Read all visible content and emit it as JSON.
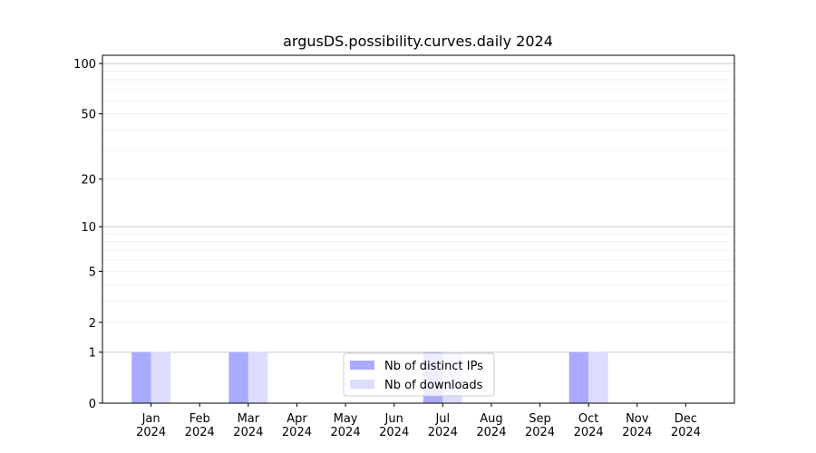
{
  "chart_data": {
    "type": "bar",
    "title": "argusDS.possibility.curves.daily 2024",
    "categories": [
      "Jan 2024",
      "Feb 2024",
      "Mar 2024",
      "Apr 2024",
      "May 2024",
      "Jun 2024",
      "Jul 2024",
      "Aug 2024",
      "Sep 2024",
      "Oct 2024",
      "Nov 2024",
      "Dec 2024"
    ],
    "series": [
      {
        "name": "Nb of distinct IPs",
        "color": "#aaaaff",
        "values": [
          1,
          0,
          1,
          0,
          0,
          0,
          1,
          0,
          0,
          1,
          0,
          0
        ]
      },
      {
        "name": "Nb of downloads",
        "color": "#ddddff",
        "values": [
          1,
          0,
          1,
          0,
          0,
          0,
          1,
          0,
          0,
          1,
          0,
          0
        ]
      }
    ],
    "yscale": "log1p",
    "ylim": [
      0,
      112
    ],
    "yticks": [
      0,
      1,
      2,
      5,
      10,
      20,
      50,
      100
    ],
    "ymajorgrid": [
      1,
      10,
      100
    ],
    "yminorgrid": [
      2,
      3,
      4,
      5,
      6,
      7,
      8,
      9,
      20,
      30,
      40,
      50,
      60,
      70,
      80,
      90
    ],
    "grid": true,
    "legend": "lower center"
  }
}
